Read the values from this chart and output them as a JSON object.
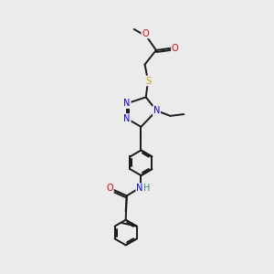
{
  "bg_color": "#ebebeb",
  "bond_color": "#1a1a1a",
  "bond_width": 1.4,
  "atom_colors": {
    "N": "#0000ee",
    "O": "#ee0000",
    "S": "#bbaa00",
    "H": "#3a8a8a",
    "C": "#1a1a1a"
  },
  "font_size": 7.0,
  "fig_size": [
    3.0,
    3.0
  ],
  "dpi": 100
}
